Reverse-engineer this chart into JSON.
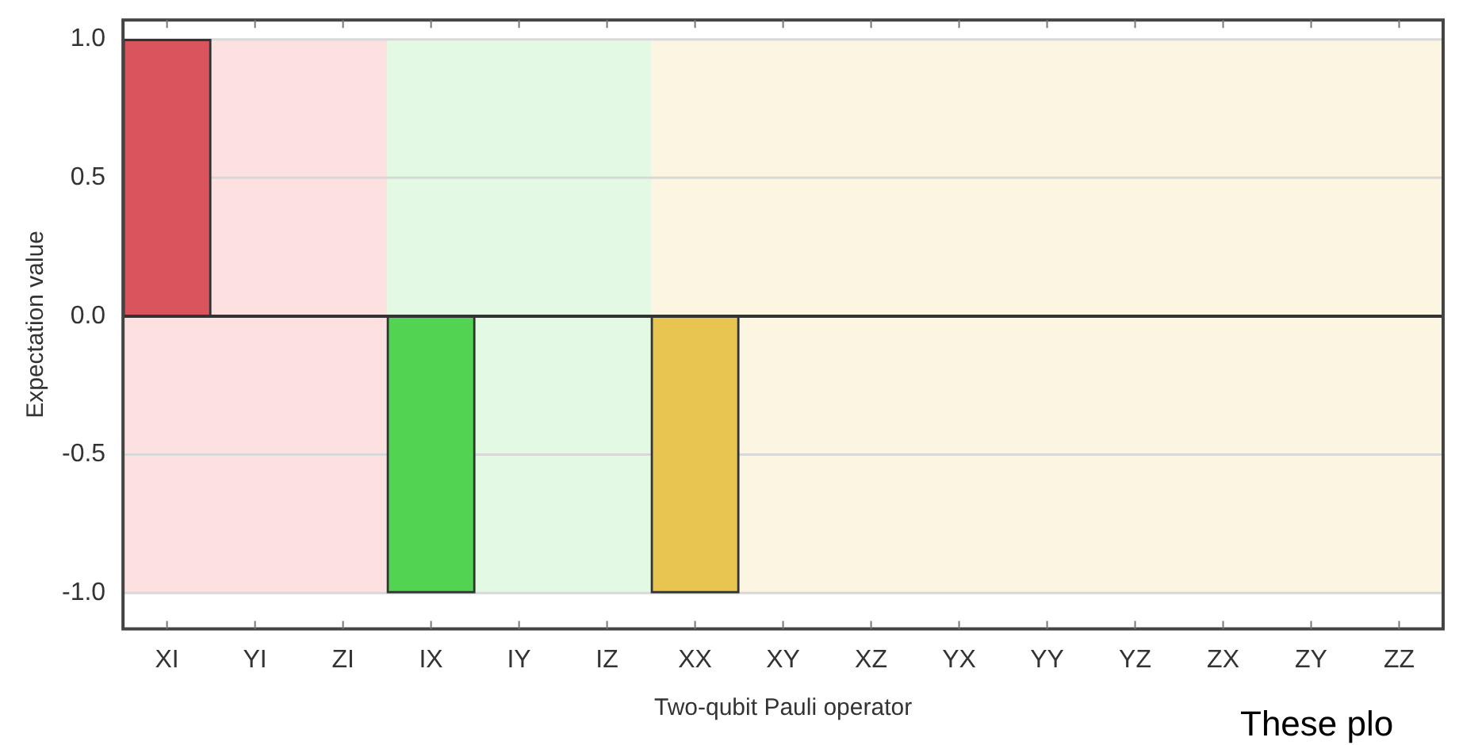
{
  "chart_data": {
    "type": "bar",
    "xlabel": "Two-qubit Pauli operator",
    "ylabel": "Expectation value",
    "categories": [
      "XI",
      "YI",
      "ZI",
      "IX",
      "IY",
      "IZ",
      "XX",
      "XY",
      "XZ",
      "YX",
      "YY",
      "YZ",
      "ZX",
      "ZY",
      "ZZ"
    ],
    "values": [
      1,
      0,
      0,
      -1,
      0,
      0,
      -1,
      0,
      0,
      0,
      0,
      0,
      0,
      0,
      0
    ],
    "colors": [
      "#d9545c",
      "#d9545c",
      "#d9545c",
      "#52d452",
      "#52d452",
      "#52d452",
      "#e8c550",
      "#e8c550",
      "#e8c550",
      "#e8c550",
      "#e8c550",
      "#e8c550",
      "#e8c550",
      "#e8c550",
      "#e8c550"
    ],
    "ylim": [
      -1.13,
      1.07
    ],
    "yticks": [
      {
        "value": -1,
        "label": "-1.0"
      },
      {
        "value": -0.5,
        "label": "-0.5"
      },
      {
        "value": 0,
        "label": "0.0"
      },
      {
        "value": 0.5,
        "label": "0.5"
      },
      {
        "value": 1,
        "label": "1.0"
      }
    ],
    "grid": "y",
    "legend": false,
    "ref_lines": [
      {
        "axis": "y",
        "value": 0,
        "color": "#333333"
      }
    ],
    "bands": [
      {
        "axis": "x",
        "from": "XI",
        "to": "ZI",
        "color": "#fde0e0"
      },
      {
        "axis": "x",
        "from": "IX",
        "to": "IZ",
        "color": "#e4f9e4"
      },
      {
        "axis": "x",
        "from": "XX",
        "to": "ZZ",
        "color": "#fcf5e1"
      }
    ],
    "annotations": [
      "These plo"
    ]
  }
}
